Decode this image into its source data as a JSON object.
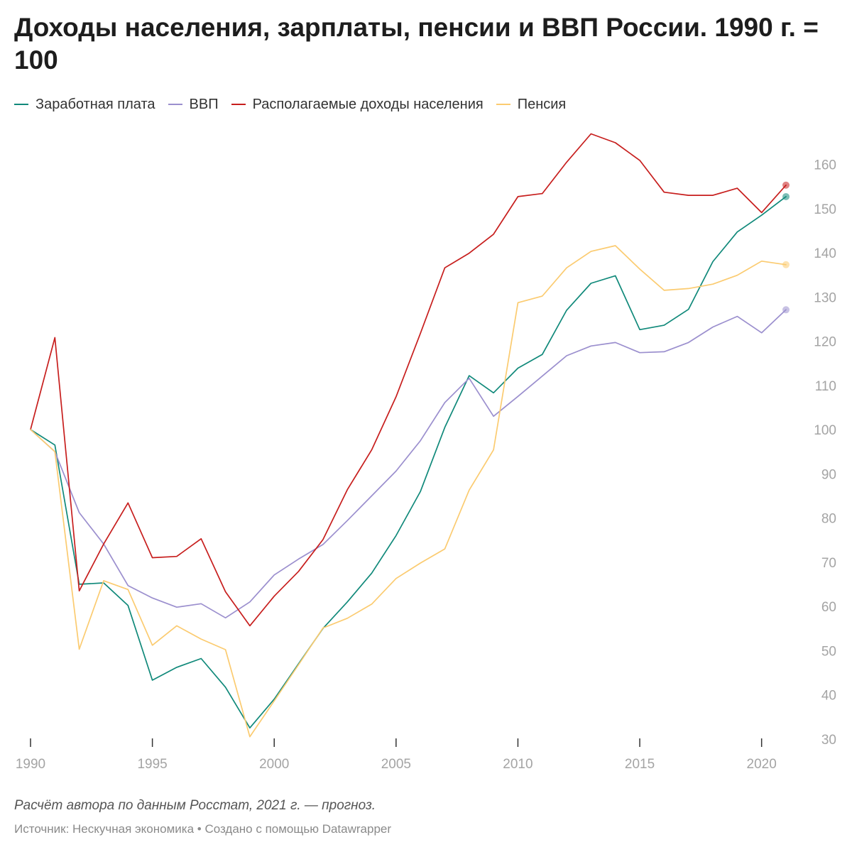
{
  "chart_data": {
    "type": "line",
    "title": "Доходы населения, зарплаты, пенсии и ВВП России. 1990 г. = 100",
    "x": [
      1990,
      1991,
      1992,
      1993,
      1994,
      1995,
      1996,
      1997,
      1998,
      1999,
      2000,
      2001,
      2002,
      2003,
      2004,
      2005,
      2006,
      2007,
      2008,
      2009,
      2010,
      2011,
      2012,
      2013,
      2014,
      2015,
      2016,
      2017,
      2018,
      2019,
      2020,
      2021
    ],
    "xticks": [
      1990,
      1995,
      2000,
      2005,
      2010,
      2015,
      2020
    ],
    "ylim": [
      30,
      167
    ],
    "yticks": [
      30,
      40,
      50,
      60,
      70,
      80,
      90,
      100,
      110,
      120,
      130,
      140,
      150,
      160
    ],
    "y_axis_position": "right",
    "grid": false,
    "legend_position": "top-left",
    "series": [
      {
        "name": "Заработная плата",
        "color": "#10897a",
        "values": [
          100,
          96.5,
          65,
          65.3,
          60.2,
          43.3,
          46.2,
          48.2,
          41.7,
          32.5,
          39,
          47,
          55,
          61,
          67.5,
          76,
          86,
          100.5,
          112.2,
          108.3,
          113.9,
          117,
          127,
          133.1,
          134.8,
          122.6,
          123.6,
          127.2,
          138,
          144.7,
          148.5,
          152.7
        ]
      },
      {
        "name": "ВВП",
        "color": "#9b8fce",
        "values": [
          100,
          95,
          81.2,
          74.1,
          64.7,
          61.9,
          59.8,
          60.6,
          57.4,
          61,
          67.1,
          70.7,
          74,
          79.4,
          85,
          90.6,
          97.5,
          106.1,
          111.6,
          103,
          107.5,
          112.1,
          116.7,
          118.9,
          119.7,
          117.4,
          117.6,
          119.7,
          123.2,
          125.6,
          121.9,
          127.1
        ]
      },
      {
        "name": "Располагаемые доходы населения",
        "color": "#c71e1d",
        "values": [
          100,
          120.8,
          63.5,
          74.1,
          83.4,
          71,
          71.3,
          75.3,
          63.3,
          55.6,
          62.3,
          67.9,
          75.1,
          86.4,
          95.4,
          107.4,
          121.8,
          136.6,
          139.9,
          144.2,
          152.7,
          153.4,
          160.5,
          166.9,
          164.9,
          160.9,
          153.7,
          153,
          153,
          154.6,
          149.1,
          155.3
        ]
      },
      {
        "name": "Пенсия",
        "color": "#fbcb70",
        "values": [
          100,
          95,
          50.3,
          65.8,
          63.8,
          51.2,
          55.6,
          52.6,
          50.2,
          30.5,
          38.6,
          46.8,
          55.1,
          57.3,
          60.5,
          66.3,
          69.8,
          73,
          86.3,
          95.4,
          128.7,
          130.2,
          136.6,
          140.3,
          141.6,
          136.3,
          131.5,
          131.9,
          132.9,
          134.9,
          138.1,
          137.3
        ]
      }
    ]
  },
  "note": "Расчёт автора по данным Росстат, 2021 г. — прогноз.",
  "source": "Источник: Нескучная экономика • Создано с помощью Datawrapper"
}
